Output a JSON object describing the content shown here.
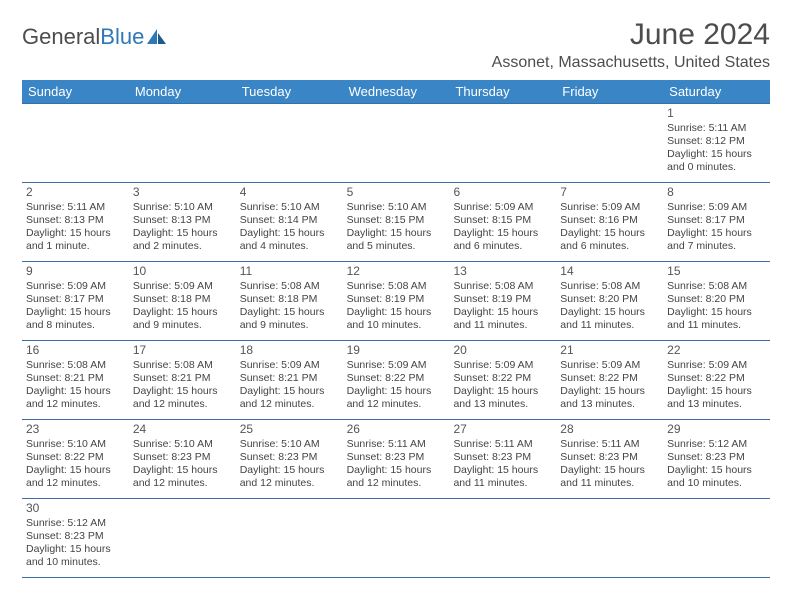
{
  "brand": {
    "part1": "General",
    "part2": "Blue"
  },
  "title": "June 2024",
  "location": "Assonet, Massachusetts, United States",
  "colors": {
    "header_bg": "#3a85c6",
    "header_text": "#ffffff",
    "border": "#3a6ea5",
    "title_text": "#4d4d4d",
    "body_text": "#444444",
    "background": "#ffffff"
  },
  "fonts": {
    "title_size": 30,
    "location_size": 16,
    "dayheader_size": 13,
    "cell_size": 10.5
  },
  "day_headers": [
    "Sunday",
    "Monday",
    "Tuesday",
    "Wednesday",
    "Thursday",
    "Friday",
    "Saturday"
  ],
  "weeks": [
    [
      null,
      null,
      null,
      null,
      null,
      null,
      {
        "n": "1",
        "sr": "Sunrise: 5:11 AM",
        "ss": "Sunset: 8:12 PM",
        "d1": "Daylight: 15 hours",
        "d2": "and 0 minutes."
      }
    ],
    [
      {
        "n": "2",
        "sr": "Sunrise: 5:11 AM",
        "ss": "Sunset: 8:13 PM",
        "d1": "Daylight: 15 hours",
        "d2": "and 1 minute."
      },
      {
        "n": "3",
        "sr": "Sunrise: 5:10 AM",
        "ss": "Sunset: 8:13 PM",
        "d1": "Daylight: 15 hours",
        "d2": "and 2 minutes."
      },
      {
        "n": "4",
        "sr": "Sunrise: 5:10 AM",
        "ss": "Sunset: 8:14 PM",
        "d1": "Daylight: 15 hours",
        "d2": "and 4 minutes."
      },
      {
        "n": "5",
        "sr": "Sunrise: 5:10 AM",
        "ss": "Sunset: 8:15 PM",
        "d1": "Daylight: 15 hours",
        "d2": "and 5 minutes."
      },
      {
        "n": "6",
        "sr": "Sunrise: 5:09 AM",
        "ss": "Sunset: 8:15 PM",
        "d1": "Daylight: 15 hours",
        "d2": "and 6 minutes."
      },
      {
        "n": "7",
        "sr": "Sunrise: 5:09 AM",
        "ss": "Sunset: 8:16 PM",
        "d1": "Daylight: 15 hours",
        "d2": "and 6 minutes."
      },
      {
        "n": "8",
        "sr": "Sunrise: 5:09 AM",
        "ss": "Sunset: 8:17 PM",
        "d1": "Daylight: 15 hours",
        "d2": "and 7 minutes."
      }
    ],
    [
      {
        "n": "9",
        "sr": "Sunrise: 5:09 AM",
        "ss": "Sunset: 8:17 PM",
        "d1": "Daylight: 15 hours",
        "d2": "and 8 minutes."
      },
      {
        "n": "10",
        "sr": "Sunrise: 5:09 AM",
        "ss": "Sunset: 8:18 PM",
        "d1": "Daylight: 15 hours",
        "d2": "and 9 minutes."
      },
      {
        "n": "11",
        "sr": "Sunrise: 5:08 AM",
        "ss": "Sunset: 8:18 PM",
        "d1": "Daylight: 15 hours",
        "d2": "and 9 minutes."
      },
      {
        "n": "12",
        "sr": "Sunrise: 5:08 AM",
        "ss": "Sunset: 8:19 PM",
        "d1": "Daylight: 15 hours",
        "d2": "and 10 minutes."
      },
      {
        "n": "13",
        "sr": "Sunrise: 5:08 AM",
        "ss": "Sunset: 8:19 PM",
        "d1": "Daylight: 15 hours",
        "d2": "and 11 minutes."
      },
      {
        "n": "14",
        "sr": "Sunrise: 5:08 AM",
        "ss": "Sunset: 8:20 PM",
        "d1": "Daylight: 15 hours",
        "d2": "and 11 minutes."
      },
      {
        "n": "15",
        "sr": "Sunrise: 5:08 AM",
        "ss": "Sunset: 8:20 PM",
        "d1": "Daylight: 15 hours",
        "d2": "and 11 minutes."
      }
    ],
    [
      {
        "n": "16",
        "sr": "Sunrise: 5:08 AM",
        "ss": "Sunset: 8:21 PM",
        "d1": "Daylight: 15 hours",
        "d2": "and 12 minutes."
      },
      {
        "n": "17",
        "sr": "Sunrise: 5:08 AM",
        "ss": "Sunset: 8:21 PM",
        "d1": "Daylight: 15 hours",
        "d2": "and 12 minutes."
      },
      {
        "n": "18",
        "sr": "Sunrise: 5:09 AM",
        "ss": "Sunset: 8:21 PM",
        "d1": "Daylight: 15 hours",
        "d2": "and 12 minutes."
      },
      {
        "n": "19",
        "sr": "Sunrise: 5:09 AM",
        "ss": "Sunset: 8:22 PM",
        "d1": "Daylight: 15 hours",
        "d2": "and 12 minutes."
      },
      {
        "n": "20",
        "sr": "Sunrise: 5:09 AM",
        "ss": "Sunset: 8:22 PM",
        "d1": "Daylight: 15 hours",
        "d2": "and 13 minutes."
      },
      {
        "n": "21",
        "sr": "Sunrise: 5:09 AM",
        "ss": "Sunset: 8:22 PM",
        "d1": "Daylight: 15 hours",
        "d2": "and 13 minutes."
      },
      {
        "n": "22",
        "sr": "Sunrise: 5:09 AM",
        "ss": "Sunset: 8:22 PM",
        "d1": "Daylight: 15 hours",
        "d2": "and 13 minutes."
      }
    ],
    [
      {
        "n": "23",
        "sr": "Sunrise: 5:10 AM",
        "ss": "Sunset: 8:22 PM",
        "d1": "Daylight: 15 hours",
        "d2": "and 12 minutes."
      },
      {
        "n": "24",
        "sr": "Sunrise: 5:10 AM",
        "ss": "Sunset: 8:23 PM",
        "d1": "Daylight: 15 hours",
        "d2": "and 12 minutes."
      },
      {
        "n": "25",
        "sr": "Sunrise: 5:10 AM",
        "ss": "Sunset: 8:23 PM",
        "d1": "Daylight: 15 hours",
        "d2": "and 12 minutes."
      },
      {
        "n": "26",
        "sr": "Sunrise: 5:11 AM",
        "ss": "Sunset: 8:23 PM",
        "d1": "Daylight: 15 hours",
        "d2": "and 12 minutes."
      },
      {
        "n": "27",
        "sr": "Sunrise: 5:11 AM",
        "ss": "Sunset: 8:23 PM",
        "d1": "Daylight: 15 hours",
        "d2": "and 11 minutes."
      },
      {
        "n": "28",
        "sr": "Sunrise: 5:11 AM",
        "ss": "Sunset: 8:23 PM",
        "d1": "Daylight: 15 hours",
        "d2": "and 11 minutes."
      },
      {
        "n": "29",
        "sr": "Sunrise: 5:12 AM",
        "ss": "Sunset: 8:23 PM",
        "d1": "Daylight: 15 hours",
        "d2": "and 10 minutes."
      }
    ],
    [
      {
        "n": "30",
        "sr": "Sunrise: 5:12 AM",
        "ss": "Sunset: 8:23 PM",
        "d1": "Daylight: 15 hours",
        "d2": "and 10 minutes."
      },
      null,
      null,
      null,
      null,
      null,
      null
    ]
  ]
}
